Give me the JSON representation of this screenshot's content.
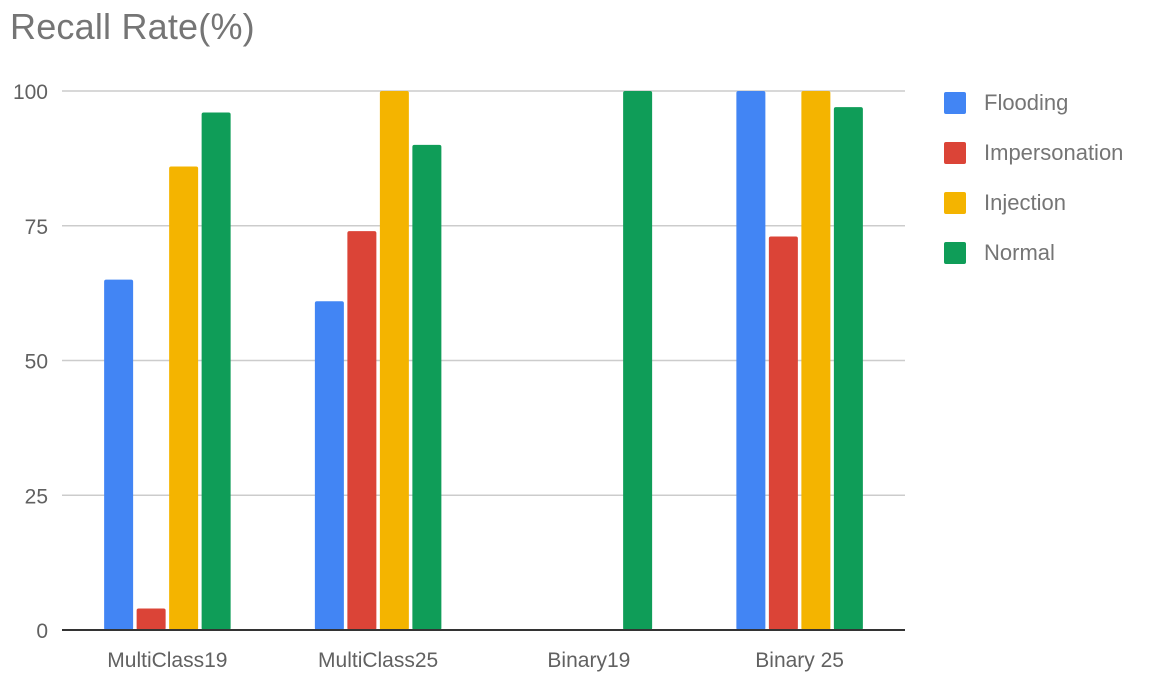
{
  "chart_data": {
    "type": "bar",
    "title": "Recall Rate(%)",
    "xlabel": "",
    "ylabel": "",
    "categories": [
      "MultiClass19",
      "MultiClass25",
      "Binary19",
      "Binary 25"
    ],
    "series": [
      {
        "name": "Flooding",
        "color": "#4285F4",
        "values": [
          65,
          61,
          0,
          100
        ]
      },
      {
        "name": "Impersonation",
        "color": "#DB4437",
        "values": [
          4,
          74,
          0,
          73
        ]
      },
      {
        "name": "Injection",
        "color": "#F4B400",
        "values": [
          86,
          100,
          0,
          100
        ]
      },
      {
        "name": "Normal",
        "color": "#0F9D58",
        "values": [
          96,
          90,
          100,
          97
        ]
      }
    ],
    "ylim": [
      0,
      100
    ],
    "yticks": [
      "0",
      "25",
      "50",
      "75",
      "100"
    ],
    "grid": true,
    "legend_position": "right"
  }
}
